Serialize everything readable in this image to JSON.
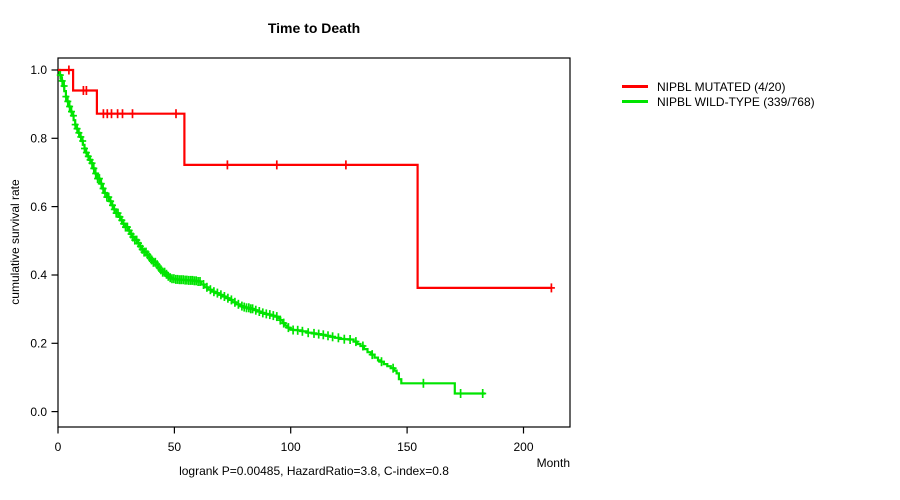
{
  "chart_data": {
    "type": "line",
    "subtype": "kaplan-meier-step-survival",
    "title": "Time to Death",
    "xlabel": "Month",
    "ylabel": "cumulative survival rate",
    "annotation": "logrank P=0.00485, HazardRatio=3.8, C-index=0.8",
    "xlim": [
      0,
      220
    ],
    "ylim": [
      -0.045,
      1.035
    ],
    "x_ticks": [
      0,
      50,
      100,
      150,
      200
    ],
    "y_ticks": [
      "0.0",
      "0.2",
      "0.4",
      "0.6",
      "0.8",
      "1.0"
    ],
    "grid": false,
    "legend_position": "right-outside",
    "axis_color": "#000000",
    "series": [
      {
        "name": "NIPBL MUTATED (4/20)",
        "color": "#ff0000",
        "events": 4,
        "n": 20,
        "steps": [
          [
            0,
            1.0
          ],
          [
            6.5,
            0.94
          ],
          [
            16.7,
            0.872
          ],
          [
            54.3,
            0.722
          ],
          [
            154.5,
            0.362
          ],
          [
            212,
            0.362
          ]
        ],
        "censor_months": [
          4.7,
          10.9,
          12.2,
          19.5,
          21.2,
          23,
          25.6,
          27.7,
          32,
          50.7,
          72.8,
          94,
          123.7,
          212
        ]
      },
      {
        "name": "NIPBL WILD-TYPE (339/768)",
        "color": "#00e400",
        "events": 339,
        "n": 768,
        "steps": [
          [
            0,
            1.0
          ],
          [
            0.7,
            0.985
          ],
          [
            1.4,
            0.968
          ],
          [
            2,
            0.953
          ],
          [
            2.7,
            0.938
          ],
          [
            3.4,
            0.922
          ],
          [
            4,
            0.908
          ],
          [
            4.7,
            0.893
          ],
          [
            5.4,
            0.878
          ],
          [
            6,
            0.866
          ],
          [
            6.7,
            0.853
          ],
          [
            7.4,
            0.84
          ],
          [
            8,
            0.828
          ],
          [
            8.7,
            0.816
          ],
          [
            9.4,
            0.804
          ],
          [
            10,
            0.792
          ],
          [
            10.7,
            0.781
          ],
          [
            11.4,
            0.77
          ],
          [
            12,
            0.758
          ],
          [
            12.7,
            0.747
          ],
          [
            13.4,
            0.737
          ],
          [
            14,
            0.727
          ],
          [
            15,
            0.712
          ],
          [
            16,
            0.697
          ],
          [
            17,
            0.682
          ],
          [
            18,
            0.667
          ],
          [
            19,
            0.653
          ],
          [
            20,
            0.64
          ],
          [
            21,
            0.628
          ],
          [
            22,
            0.616
          ],
          [
            23,
            0.604
          ],
          [
            24,
            0.592
          ],
          [
            25,
            0.581
          ],
          [
            26,
            0.57
          ],
          [
            27,
            0.56
          ],
          [
            28,
            0.55
          ],
          [
            29,
            0.54
          ],
          [
            30,
            0.53
          ],
          [
            31,
            0.52
          ],
          [
            32,
            0.511
          ],
          [
            33,
            0.502
          ],
          [
            34,
            0.493
          ],
          [
            35,
            0.484
          ],
          [
            36,
            0.475
          ],
          [
            37,
            0.467
          ],
          [
            38,
            0.459
          ],
          [
            39,
            0.451
          ],
          [
            40,
            0.444
          ],
          [
            41,
            0.437
          ],
          [
            42,
            0.43
          ],
          [
            43,
            0.422
          ],
          [
            44,
            0.415
          ],
          [
            45,
            0.408
          ],
          [
            46,
            0.402
          ],
          [
            47,
            0.396
          ],
          [
            48,
            0.392
          ],
          [
            49,
            0.389
          ],
          [
            50,
            0.387
          ],
          [
            52,
            0.386
          ],
          [
            54,
            0.385
          ],
          [
            56,
            0.384
          ],
          [
            58,
            0.383
          ],
          [
            60,
            0.381
          ],
          [
            61.5,
            0.372
          ],
          [
            63,
            0.364
          ],
          [
            64.5,
            0.357
          ],
          [
            66,
            0.351
          ],
          [
            67.5,
            0.347
          ],
          [
            69,
            0.342
          ],
          [
            70.5,
            0.337
          ],
          [
            72,
            0.332
          ],
          [
            73.5,
            0.327
          ],
          [
            75,
            0.32
          ],
          [
            76.5,
            0.314
          ],
          [
            78,
            0.309
          ],
          [
            79.5,
            0.306
          ],
          [
            81,
            0.304
          ],
          [
            82.5,
            0.301
          ],
          [
            84,
            0.297
          ],
          [
            85.5,
            0.293
          ],
          [
            87,
            0.289
          ],
          [
            88.5,
            0.286
          ],
          [
            90,
            0.284
          ],
          [
            91.5,
            0.281
          ],
          [
            93,
            0.278
          ],
          [
            94.5,
            0.274
          ],
          [
            95.5,
            0.268
          ],
          [
            96.5,
            0.259
          ],
          [
            97.5,
            0.252
          ],
          [
            98.5,
            0.246
          ],
          [
            99.5,
            0.241
          ],
          [
            101,
            0.239
          ],
          [
            103,
            0.238
          ],
          [
            105,
            0.235
          ],
          [
            107,
            0.231
          ],
          [
            109,
            0.229
          ],
          [
            111,
            0.227
          ],
          [
            113,
            0.225
          ],
          [
            115,
            0.222
          ],
          [
            117,
            0.219
          ],
          [
            119,
            0.216
          ],
          [
            121,
            0.213
          ],
          [
            123,
            0.212
          ],
          [
            125,
            0.211
          ],
          [
            127,
            0.205
          ],
          [
            128.5,
            0.198
          ],
          [
            130,
            0.192
          ],
          [
            131.5,
            0.183
          ],
          [
            133,
            0.174
          ],
          [
            134.5,
            0.167
          ],
          [
            136,
            0.158
          ],
          [
            137.5,
            0.15
          ],
          [
            138.5,
            0.146
          ],
          [
            140,
            0.139
          ],
          [
            141.5,
            0.133
          ],
          [
            143,
            0.127
          ],
          [
            144.5,
            0.12
          ],
          [
            145.5,
            0.112
          ],
          [
            146.5,
            0.095
          ],
          [
            147.5,
            0.083
          ],
          [
            169.5,
            0.083
          ],
          [
            170.5,
            0.053
          ],
          [
            183.5,
            0.053
          ]
        ],
        "censor_months": [
          1,
          1.8,
          2.6,
          3.4,
          4.2,
          5,
          5.8,
          6.6,
          7.4,
          8.2,
          9,
          9.8,
          10.6,
          11.4,
          12.2,
          13,
          13.8,
          14.6,
          15.4,
          16.2,
          17,
          17.8,
          18.6,
          19.4,
          20.2,
          21,
          21.8,
          22.6,
          23.4,
          24.2,
          25,
          25.8,
          26.6,
          27.4,
          28.2,
          29,
          29.8,
          30.6,
          31.4,
          32.2,
          33,
          33.8,
          34.6,
          35.4,
          36.2,
          37,
          37.8,
          38.6,
          39.4,
          40.2,
          41,
          41.8,
          42.6,
          43.4,
          44.2,
          45,
          45.8,
          46.6,
          47.4,
          48.2,
          49,
          49.8,
          50.6,
          51.4,
          52.2,
          53,
          53.8,
          54.6,
          55.4,
          56.2,
          57,
          57.8,
          58.6,
          59.4,
          60.2,
          61,
          62.5,
          64,
          65.5,
          67,
          68.5,
          70,
          71.5,
          73,
          74.5,
          76,
          77.5,
          79,
          80,
          81,
          82,
          82.8,
          83.6,
          85,
          86.5,
          88,
          89.5,
          91,
          92.5,
          94,
          95.5,
          97,
          99,
          101,
          103,
          105,
          107.5,
          110,
          112,
          114,
          116,
          118,
          120.5,
          123,
          125.5,
          128,
          131,
          135,
          139,
          144,
          157,
          173,
          182.5
        ]
      }
    ]
  }
}
